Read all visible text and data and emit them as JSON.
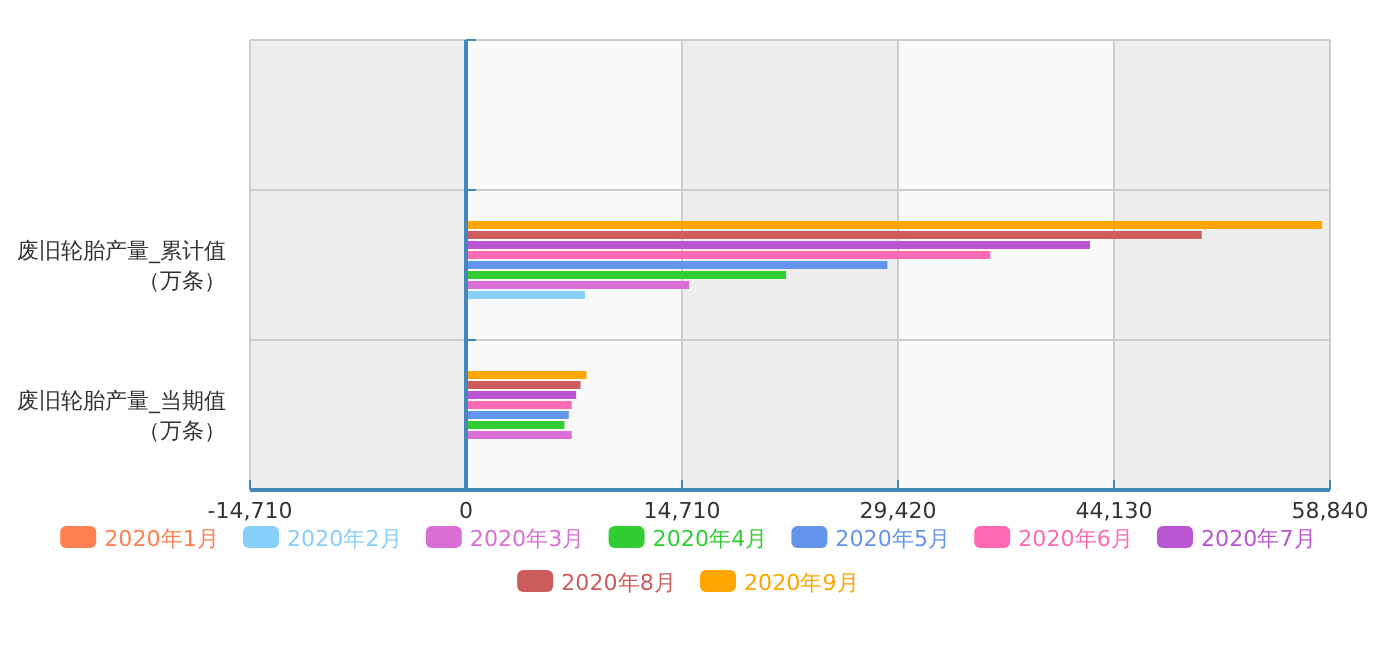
{
  "chart_data": {
    "type": "bar",
    "orientation": "horizontal",
    "categories": [
      null,
      "废旧轮胎产量_累计值（万条）",
      "废旧轮胎产量_当期值（万条）"
    ],
    "series": [
      {
        "name": "2020年1月",
        "color": "#ff7f50",
        "values": [
          null,
          null,
          null
        ]
      },
      {
        "name": "2020年2月",
        "color": "#87cefa",
        "values": [
          null,
          8100,
          null
        ]
      },
      {
        "name": "2020年3月",
        "color": "#da70d6",
        "values": [
          null,
          15200,
          7200
        ]
      },
      {
        "name": "2020年4月",
        "color": "#32cd32",
        "values": [
          null,
          21800,
          6700
        ]
      },
      {
        "name": "2020年5月",
        "color": "#6495ed",
        "values": [
          null,
          28700,
          7000
        ]
      },
      {
        "name": "2020年6月",
        "color": "#ff69b4",
        "values": [
          null,
          35700,
          7200
        ]
      },
      {
        "name": "2020年7月",
        "color": "#ba55d3",
        "values": [
          null,
          42500,
          7500
        ]
      },
      {
        "name": "2020年8月",
        "color": "#cd5c5c",
        "values": [
          null,
          50100,
          7800
        ]
      },
      {
        "name": "2020年9月",
        "color": "#ffa500",
        "values": [
          null,
          58300,
          8200
        ]
      }
    ],
    "xlim": [
      -14710,
      58840
    ],
    "xticks": [
      {
        "value": -14710,
        "label": "-14,710"
      },
      0,
      {
        "value": 14710,
        "label": "14,710"
      },
      {
        "value": 29420,
        "label": "29,420"
      },
      {
        "value": 44130,
        "label": "44,130"
      },
      {
        "value": 58840,
        "label": "58,840"
      }
    ],
    "ref_lines": [
      {
        "axis": "x",
        "value": 0,
        "color": "#4488bb"
      }
    ],
    "grid": true,
    "legend": "bottom"
  }
}
